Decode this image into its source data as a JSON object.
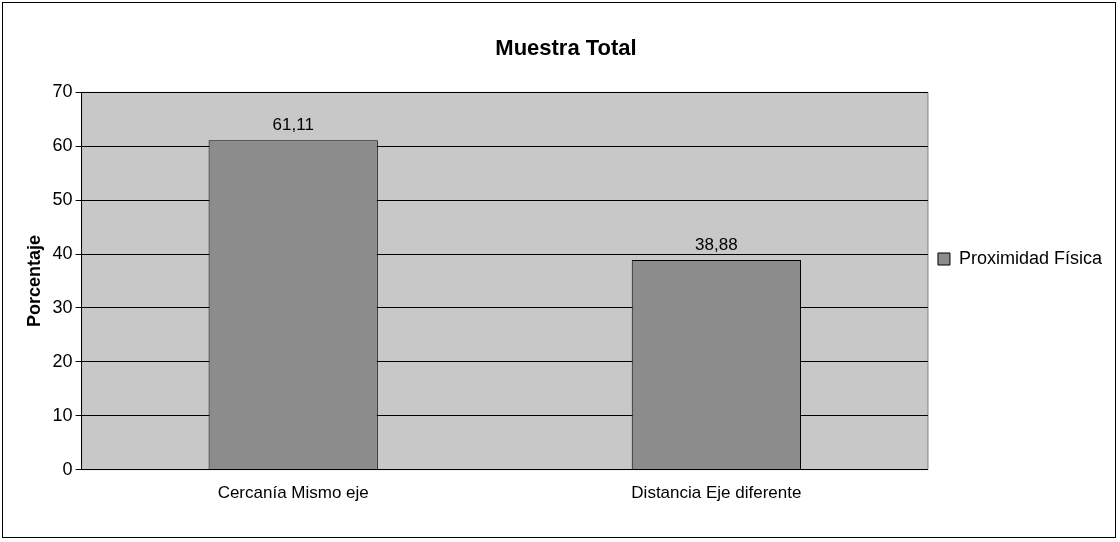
{
  "chart_data": {
    "type": "bar",
    "title": "Muestra Total",
    "ylabel": "Porcentaje",
    "categories": [
      "Cercanía Mismo eje",
      "Distancia Eje diferente"
    ],
    "series": [
      {
        "name": "Proximidad Física",
        "color": "#8c8c8c",
        "values": [
          61.11,
          38.88
        ],
        "value_labels": [
          "61,11",
          "38,88"
        ]
      }
    ],
    "ylim": [
      0,
      70
    ],
    "yticks": [
      0,
      10,
      20,
      30,
      40,
      50,
      60,
      70
    ],
    "grid": "y",
    "legend": "right"
  }
}
